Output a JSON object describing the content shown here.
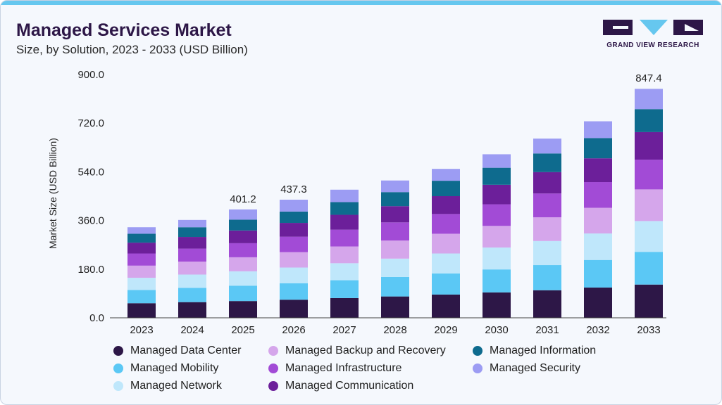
{
  "header": {
    "title": "Managed Services Market",
    "subtitle": "Size, by Solution, 2023 - 2033 (USD Billion)"
  },
  "brand": {
    "name": "GRAND VIEW RESEARCH",
    "colors": {
      "dark": "#2d1747",
      "light": "#66c7ef"
    }
  },
  "chart_data": {
    "type": "bar",
    "stacked": true,
    "categories": [
      "2023",
      "2024",
      "2025",
      "2026",
      "2027",
      "2028",
      "2029",
      "2030",
      "2031",
      "2032",
      "2033"
    ],
    "ylabel": "Market Size (USD Billion)",
    "xlabel": "",
    "ylim": [
      0,
      900
    ],
    "y_ticks": [
      "0.0",
      "180.0",
      "360.0",
      "540.0",
      "720.0",
      "900.0"
    ],
    "grid": false,
    "legend_position": "bottom",
    "series": [
      {
        "name": "Managed Data Center",
        "color": "#2d1747",
        "values": [
          54,
          58,
          62,
          67,
          73,
          79,
          86,
          94,
          102,
          112,
          123
        ]
      },
      {
        "name": "Managed Mobility",
        "color": "#5bc8f5",
        "values": [
          49,
          53,
          57,
          61,
          66,
          72,
          78,
          85,
          93,
          102,
          121
        ]
      },
      {
        "name": "Managed Network",
        "color": "#bfe7fb",
        "values": [
          45,
          49,
          53,
          58,
          63,
          68,
          74,
          81,
          89,
          98,
          114
        ]
      },
      {
        "name": "Managed Backup and Recovery",
        "color": "#d5a6eb",
        "values": [
          45,
          48,
          52,
          57,
          62,
          67,
          73,
          80,
          88,
          95,
          117
        ]
      },
      {
        "name": "Managed Infrastructure",
        "color": "#a24bd6",
        "values": [
          45,
          48,
          52,
          57,
          62,
          67,
          73,
          80,
          88,
          95,
          110
        ]
      },
      {
        "name": "Managed Communication",
        "color": "#6c1f9a",
        "values": [
          40,
          43,
          47,
          51,
          55,
          60,
          66,
          72,
          79,
          88,
          102
        ]
      },
      {
        "name": "Managed Information",
        "color": "#0e6b8e",
        "values": [
          33,
          36,
          40,
          42,
          47,
          52,
          57,
          63,
          69,
          75,
          85
        ]
      },
      {
        "name": "Managed Security",
        "color": "#9c9cf3",
        "values": [
          24,
          27,
          38,
          44,
          46,
          43,
          44,
          50,
          55,
          62,
          75
        ]
      }
    ],
    "total_labels": [
      {
        "category": "2025",
        "text": "401.2",
        "value": 401.2
      },
      {
        "category": "2026",
        "text": "437.3",
        "value": 437.3
      },
      {
        "category": "2033",
        "text": "847.4",
        "value": 847.4
      }
    ]
  }
}
